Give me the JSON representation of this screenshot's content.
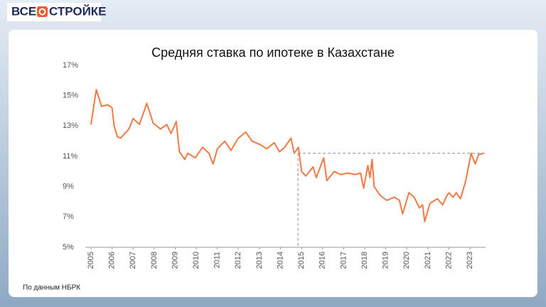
{
  "brand": {
    "left": "ВСЕ",
    "right": "СТРОЙКЕ"
  },
  "source": "По данным НБРК",
  "chart_data": {
    "type": "line",
    "title": "Средняя ставка по ипотеке в Казахстане",
    "series": [
      {
        "name": "Средняя ставка",
        "color": "#f07a45",
        "x": [
          2005.0,
          2005.25,
          2005.5,
          2005.8,
          2006.0,
          2006.1,
          2006.25,
          2006.4,
          2006.8,
          2007.0,
          2007.3,
          2007.65,
          2007.95,
          2008.3,
          2008.6,
          2008.8,
          2009.05,
          2009.2,
          2009.45,
          2009.6,
          2009.95,
          2010.3,
          2010.6,
          2010.8,
          2011.0,
          2011.35,
          2011.65,
          2012.0,
          2012.35,
          2012.65,
          2013.0,
          2013.35,
          2013.7,
          2013.95,
          2014.2,
          2014.5,
          2014.65,
          2014.85,
          2015.0,
          2015.2,
          2015.55,
          2015.7,
          2016.05,
          2016.2,
          2016.55,
          2016.85,
          2017.2,
          2017.55,
          2017.8,
          2017.95,
          2018.15,
          2018.25,
          2018.35,
          2018.45,
          2018.75,
          2019.05,
          2019.4,
          2019.65,
          2019.8,
          2020.1,
          2020.35,
          2020.6,
          2020.75,
          2020.85,
          2021.1,
          2021.45,
          2021.7,
          2021.9,
          2022.0,
          2022.2,
          2022.35,
          2022.55,
          2022.8,
          2023.05,
          2023.25,
          2023.4,
          2023.65
        ],
        "values": [
          13.1,
          15.4,
          14.3,
          14.4,
          14.2,
          13.0,
          12.3,
          12.2,
          12.8,
          13.5,
          13.1,
          14.5,
          13.2,
          12.8,
          13.1,
          12.5,
          13.3,
          11.3,
          10.8,
          11.2,
          10.9,
          11.6,
          11.2,
          10.5,
          11.5,
          12.0,
          11.4,
          12.2,
          12.6,
          12.0,
          11.8,
          11.5,
          11.9,
          11.3,
          11.6,
          12.2,
          11.2,
          11.6,
          10.0,
          9.7,
          10.3,
          9.6,
          10.9,
          9.4,
          10.0,
          9.8,
          9.9,
          9.8,
          9.9,
          8.9,
          10.4,
          9.6,
          10.8,
          9.0,
          8.4,
          8.1,
          8.3,
          8.1,
          7.2,
          8.6,
          8.3,
          7.6,
          7.8,
          6.7,
          7.9,
          8.2,
          7.8,
          8.4,
          8.6,
          8.3,
          8.6,
          8.2,
          9.4,
          11.2,
          10.5,
          11.1,
          11.2
        ]
      }
    ],
    "reference": {
      "x": 2014.83,
      "y": 11.2
    },
    "xlim": [
      2004.73,
      2023.74
    ],
    "xticks": [
      2005,
      2006,
      2007,
      2008,
      2009,
      2010,
      2011,
      2012,
      2013,
      2014,
      2015,
      2016,
      2017,
      2018,
      2019,
      2020,
      2021,
      2022,
      2023
    ],
    "ylim": [
      5,
      17
    ],
    "yticks": [
      {
        "value": 5,
        "label": "5%"
      },
      {
        "value": 7,
        "label": "7%"
      },
      {
        "value": 9,
        "label": "9%"
      },
      {
        "value": 11,
        "label": "11%"
      },
      {
        "value": 13,
        "label": "13%"
      },
      {
        "value": 15,
        "label": "15%"
      },
      {
        "value": 17,
        "label": "17%"
      }
    ]
  }
}
